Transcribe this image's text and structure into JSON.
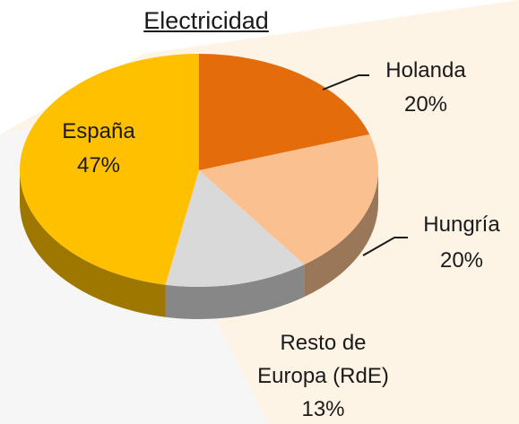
{
  "chart_data": {
    "type": "pie",
    "title": "Electricidad",
    "categories": [
      "Holanda",
      "Hungría",
      "Resto de Europa (RdE)",
      "España"
    ],
    "values": [
      20,
      20,
      13,
      47
    ],
    "value_labels": [
      "20%",
      "20%",
      "13%",
      "47%"
    ],
    "colors": [
      "#E46C0A",
      "#FAC090",
      "#D9D9D9",
      "#FFC000"
    ]
  }
}
